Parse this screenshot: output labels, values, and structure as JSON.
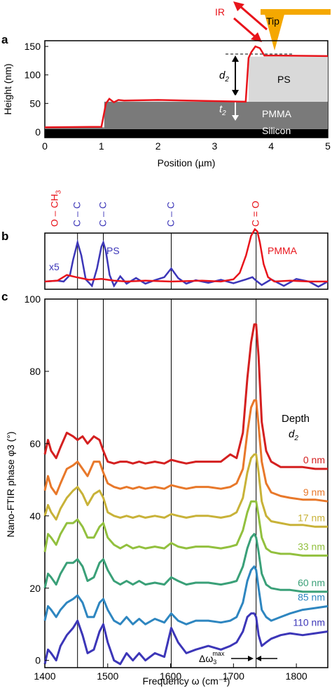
{
  "panel_a": {
    "letter": "a",
    "labels": {
      "ir": "IR",
      "tip": "Tip",
      "ps": "PS",
      "pmma": "PMMA",
      "silicon": "Silicon"
    },
    "d2_main": "d",
    "d2_sub": "2",
    "t2_main": "t",
    "t2_sub": "2"
  },
  "panel_b": {
    "letter": "b",
    "bond_labels": [
      "O – CH3",
      "C – C",
      "C – C",
      "C – C",
      "C = O"
    ],
    "ps_label": "PS",
    "pmma_label": "PMMA",
    "scale_label": "x5"
  },
  "panel_c": {
    "letter": "c",
    "depth_title_main": "Depth",
    "depth_title_d": "d",
    "depth_title_sub": "2",
    "delta_label_main": "Δω",
    "delta_label_sub": "3",
    "delta_label_sup": "max"
  },
  "colors": {
    "red": "#e8141b",
    "blue": "#3c36b8",
    "tip": "#f5a800",
    "ps_fill": "#d9d9d9",
    "pmma_fill": "#7a7a7a",
    "silicon_fill": "#000000",
    "depth": [
      "#d42020",
      "#e8782a",
      "#c8b238",
      "#92c03e",
      "#3aa078",
      "#2e86c0",
      "#3c36b8"
    ]
  },
  "chart_data": [
    {
      "type": "line",
      "panel": "a",
      "xlabel": "Position (µm)",
      "ylabel": "Height (nm)",
      "xlim": [
        0,
        5
      ],
      "ylim": [
        -10,
        160
      ],
      "xticks": [
        0,
        1,
        2,
        3,
        4,
        5
      ],
      "yticks": [
        0,
        50,
        100,
        150
      ],
      "series": [
        {
          "x": [
            0,
            1.0,
            1.08,
            1.14,
            1.22,
            1.3,
            1.4,
            2.0,
            3.0,
            3.55,
            3.6,
            3.65,
            3.72,
            3.8,
            3.88,
            3.95,
            4.1,
            5.0
          ],
          "values": [
            8,
            9,
            50,
            58,
            52,
            56,
            55,
            56,
            54,
            53,
            130,
            140,
            150,
            147,
            134,
            134,
            134,
            133
          ]
        }
      ]
    },
    {
      "type": "line",
      "panel": "b",
      "xlim": [
        1400,
        1850
      ],
      "bond_positions": [
        1435,
        1452,
        1493,
        1601,
        1736
      ],
      "series": [
        {
          "name": "PS",
          "x": [
            1400,
            1420,
            1430,
            1440,
            1445,
            1452,
            1458,
            1465,
            1475,
            1483,
            1490,
            1493,
            1497,
            1503,
            1510,
            1520,
            1530,
            1545,
            1560,
            1575,
            1590,
            1601,
            1612,
            1625,
            1640,
            1660,
            1680,
            1700,
            1720,
            1730,
            1736,
            1745,
            1760,
            1780,
            1800,
            1820,
            1835,
            1850
          ],
          "values": [
            0,
            0.02,
            0.0,
            0.15,
            0.5,
            0.9,
            0.6,
            0.05,
            -0.1,
            0.3,
            0.8,
            0.9,
            0.7,
            0.15,
            -0.1,
            0.12,
            -0.05,
            0.08,
            -0.05,
            0.03,
            0.1,
            0.3,
            0.08,
            -0.05,
            0.03,
            -0.03,
            0.04,
            -0.04,
            0.05,
            0.1,
            0.02,
            -0.08,
            0.05,
            -0.1,
            0.06,
            0.0,
            -0.12,
            0.0
          ]
        },
        {
          "name": "PMMA",
          "x": [
            1400,
            1420,
            1435,
            1450,
            1470,
            1490,
            1510,
            1530,
            1560,
            1600,
            1650,
            1680,
            1700,
            1710,
            1720,
            1728,
            1734,
            1738,
            1742,
            1748,
            1755,
            1765,
            1790,
            1820,
            1850
          ],
          "values": [
            0,
            0.02,
            0.15,
            0.1,
            0.04,
            0.06,
            0.02,
            0.0,
            0.02,
            0.0,
            0.02,
            0.0,
            0.05,
            0.2,
            0.6,
            1.05,
            1.2,
            1.15,
            0.9,
            0.4,
            0.1,
            0.0,
            0.02,
            0.0,
            0.0
          ]
        }
      ]
    },
    {
      "type": "line",
      "panel": "c",
      "xlabel": "Frequency ω (cm⁻¹)",
      "ylabel": "Nano-FTIR phase φ3 (°)",
      "xlim": [
        1400,
        1850
      ],
      "ylim": [
        -2,
        100
      ],
      "xticks": [
        1400,
        1500,
        1600,
        1700,
        1800
      ],
      "yticks": [
        0,
        20,
        40,
        60,
        80,
        100
      ],
      "vlines": [
        1452,
        1493,
        1601,
        1736
      ],
      "x": [
        1400,
        1405,
        1410,
        1418,
        1425,
        1435,
        1445,
        1452,
        1460,
        1468,
        1478,
        1487,
        1493,
        1500,
        1510,
        1520,
        1530,
        1540,
        1550,
        1560,
        1575,
        1590,
        1601,
        1612,
        1625,
        1640,
        1660,
        1680,
        1695,
        1705,
        1715,
        1722,
        1728,
        1733,
        1736,
        1740,
        1745,
        1752,
        1760,
        1775,
        1790,
        1810,
        1830,
        1850
      ],
      "series": [
        {
          "name": "0 nm",
          "values": [
            57,
            61,
            58,
            56,
            59,
            63,
            62,
            61,
            62,
            60,
            62,
            61,
            58,
            55,
            54.5,
            55,
            55,
            54.5,
            55,
            54.5,
            55,
            54.5,
            55.5,
            55,
            54.5,
            55,
            55,
            55,
            57,
            56,
            63,
            78,
            88,
            93,
            93,
            84,
            66,
            58,
            55,
            53.5,
            53.5,
            53.5,
            53,
            53
          ]
        },
        {
          "name": "9 nm",
          "values": [
            47,
            51,
            48,
            46,
            49,
            53,
            54,
            55,
            53,
            51,
            55,
            55,
            52,
            49,
            48,
            47.5,
            48,
            47.5,
            48,
            47.5,
            48,
            47.5,
            48.5,
            48,
            47.5,
            48,
            48,
            47.5,
            48,
            49,
            53,
            63,
            70,
            72,
            72,
            65,
            55,
            49,
            46.5,
            45.5,
            45,
            44.5,
            44.5,
            44
          ]
        },
        {
          "name": "17 nm",
          "values": [
            40,
            43,
            41,
            39,
            42,
            45,
            47,
            48,
            46,
            43,
            46,
            47,
            45,
            41,
            40,
            39.5,
            40,
            39.5,
            40,
            39.5,
            40,
            39.5,
            40.5,
            40,
            39.5,
            40,
            40,
            39.5,
            40,
            41,
            45,
            52,
            56,
            57,
            57,
            52,
            44,
            40,
            38.5,
            38,
            37.5,
            37.5,
            37,
            37
          ]
        },
        {
          "name": "33 nm",
          "values": [
            30,
            35,
            34,
            32,
            35,
            38,
            38,
            39,
            37,
            34,
            34,
            37,
            38,
            34,
            32,
            31,
            32,
            31,
            31.5,
            31,
            31.5,
            31,
            32.5,
            31.5,
            31,
            31.5,
            31.5,
            31,
            31.5,
            32,
            36,
            41,
            44,
            44,
            44,
            40,
            34,
            31,
            30,
            29.5,
            29.5,
            29,
            29,
            29
          ]
        },
        {
          "name": "60 nm",
          "values": [
            20,
            24,
            23,
            21,
            24,
            27,
            27,
            28,
            26,
            22,
            23,
            27,
            28,
            25,
            22,
            21,
            22,
            21,
            22,
            21,
            21.5,
            21,
            23,
            22,
            21,
            21.5,
            21.5,
            21,
            21.5,
            22,
            26,
            31,
            34,
            35,
            34,
            30,
            24,
            21,
            20,
            19.5,
            19.5,
            19,
            19,
            19
          ]
        },
        {
          "name": "85 nm",
          "values": [
            11,
            15,
            14,
            12,
            14,
            16,
            17,
            18,
            16,
            12,
            12,
            16,
            17,
            14,
            11,
            10,
            12,
            10,
            11.5,
            10,
            11.5,
            10.5,
            13,
            11,
            10,
            11,
            11,
            10.5,
            11,
            12,
            16,
            22,
            25,
            26,
            25,
            20,
            14,
            12,
            11,
            12,
            13,
            14,
            14.5,
            15
          ]
        },
        {
          "name": "110 nm",
          "values": [
            -1,
            3,
            2,
            0,
            4,
            7,
            9,
            11,
            7,
            2,
            3,
            8,
            10,
            5,
            0,
            -1,
            2,
            0,
            2,
            0,
            2,
            1,
            9,
            5,
            2,
            3,
            4,
            3,
            4,
            5,
            8,
            12,
            13,
            13,
            12,
            7,
            4,
            5,
            6,
            7,
            7.5,
            7,
            7.5,
            8
          ]
        }
      ]
    }
  ]
}
